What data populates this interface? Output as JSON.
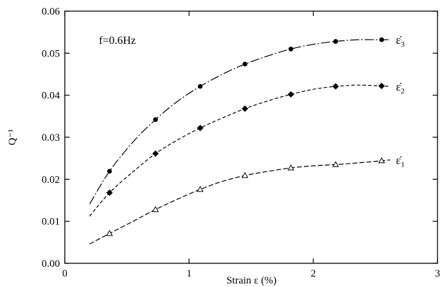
{
  "chart_data": {
    "type": "line",
    "xlabel": "Strain ε (%)",
    "ylabel": "Q⁻¹",
    "xlim": [
      0,
      3
    ],
    "ylim": [
      0,
      0.06
    ],
    "x_ticks": [
      "0",
      "1",
      "2",
      "3"
    ],
    "y_ticks": [
      "0.00",
      "0.01",
      "0.02",
      "0.03",
      "0.04",
      "0.05",
      "0.06"
    ],
    "annotation": "f=0.6Hz",
    "grid": false,
    "series": [
      {
        "name": "ε̇3",
        "label_main": "ε̇",
        "label_sub": "3",
        "marker": "circle",
        "line_style": "long-dash-dot",
        "x": [
          0.36,
          0.73,
          1.09,
          1.45,
          1.82,
          2.18,
          2.55
        ],
        "y": [
          0.0219,
          0.0342,
          0.0421,
          0.0474,
          0.051,
          0.0528,
          0.0532
        ],
        "curve_x": [
          0.2,
          0.36,
          0.55,
          0.73,
          0.91,
          1.09,
          1.27,
          1.45,
          1.64,
          1.82,
          2.0,
          2.18,
          2.36,
          2.55,
          2.62
        ],
        "curve_y": [
          0.0141,
          0.0219,
          0.0289,
          0.0342,
          0.0386,
          0.0421,
          0.045,
          0.0474,
          0.0494,
          0.051,
          0.0521,
          0.0528,
          0.0532,
          0.0532,
          0.0532
        ]
      },
      {
        "name": "ε̇2",
        "label_main": "ε̇",
        "label_sub": "2",
        "marker": "diamond",
        "line_style": "short-dash",
        "x": [
          0.36,
          0.73,
          1.09,
          1.45,
          1.82,
          2.18,
          2.55
        ],
        "y": [
          0.0168,
          0.0261,
          0.0322,
          0.0368,
          0.0402,
          0.0421,
          0.0422
        ],
        "curve_x": [
          0.2,
          0.36,
          0.55,
          0.73,
          0.91,
          1.09,
          1.27,
          1.45,
          1.64,
          1.82,
          2.0,
          2.18,
          2.36,
          2.55,
          2.62
        ],
        "curve_y": [
          0.0112,
          0.0168,
          0.0218,
          0.0261,
          0.0294,
          0.0322,
          0.0346,
          0.0368,
          0.0387,
          0.0402,
          0.0414,
          0.0421,
          0.0424,
          0.0422,
          0.0421
        ]
      },
      {
        "name": "ε̇1",
        "label_main": "ε̇",
        "label_sub": "1",
        "marker": "triangle-open",
        "line_style": "dash",
        "x": [
          0.36,
          0.73,
          1.09,
          1.45,
          1.82,
          2.18,
          2.55
        ],
        "y": [
          0.0071,
          0.0128,
          0.0176,
          0.0209,
          0.0227,
          0.0235,
          0.0244
        ],
        "curve_x": [
          0.2,
          0.36,
          0.55,
          0.73,
          0.91,
          1.09,
          1.27,
          1.45,
          1.64,
          1.82,
          2.0,
          2.18,
          2.36,
          2.55,
          2.62
        ],
        "curve_y": [
          0.0046,
          0.0071,
          0.01,
          0.0128,
          0.0153,
          0.0176,
          0.0195,
          0.0209,
          0.0219,
          0.0227,
          0.0232,
          0.0235,
          0.0239,
          0.0244,
          0.0246
        ]
      }
    ]
  }
}
